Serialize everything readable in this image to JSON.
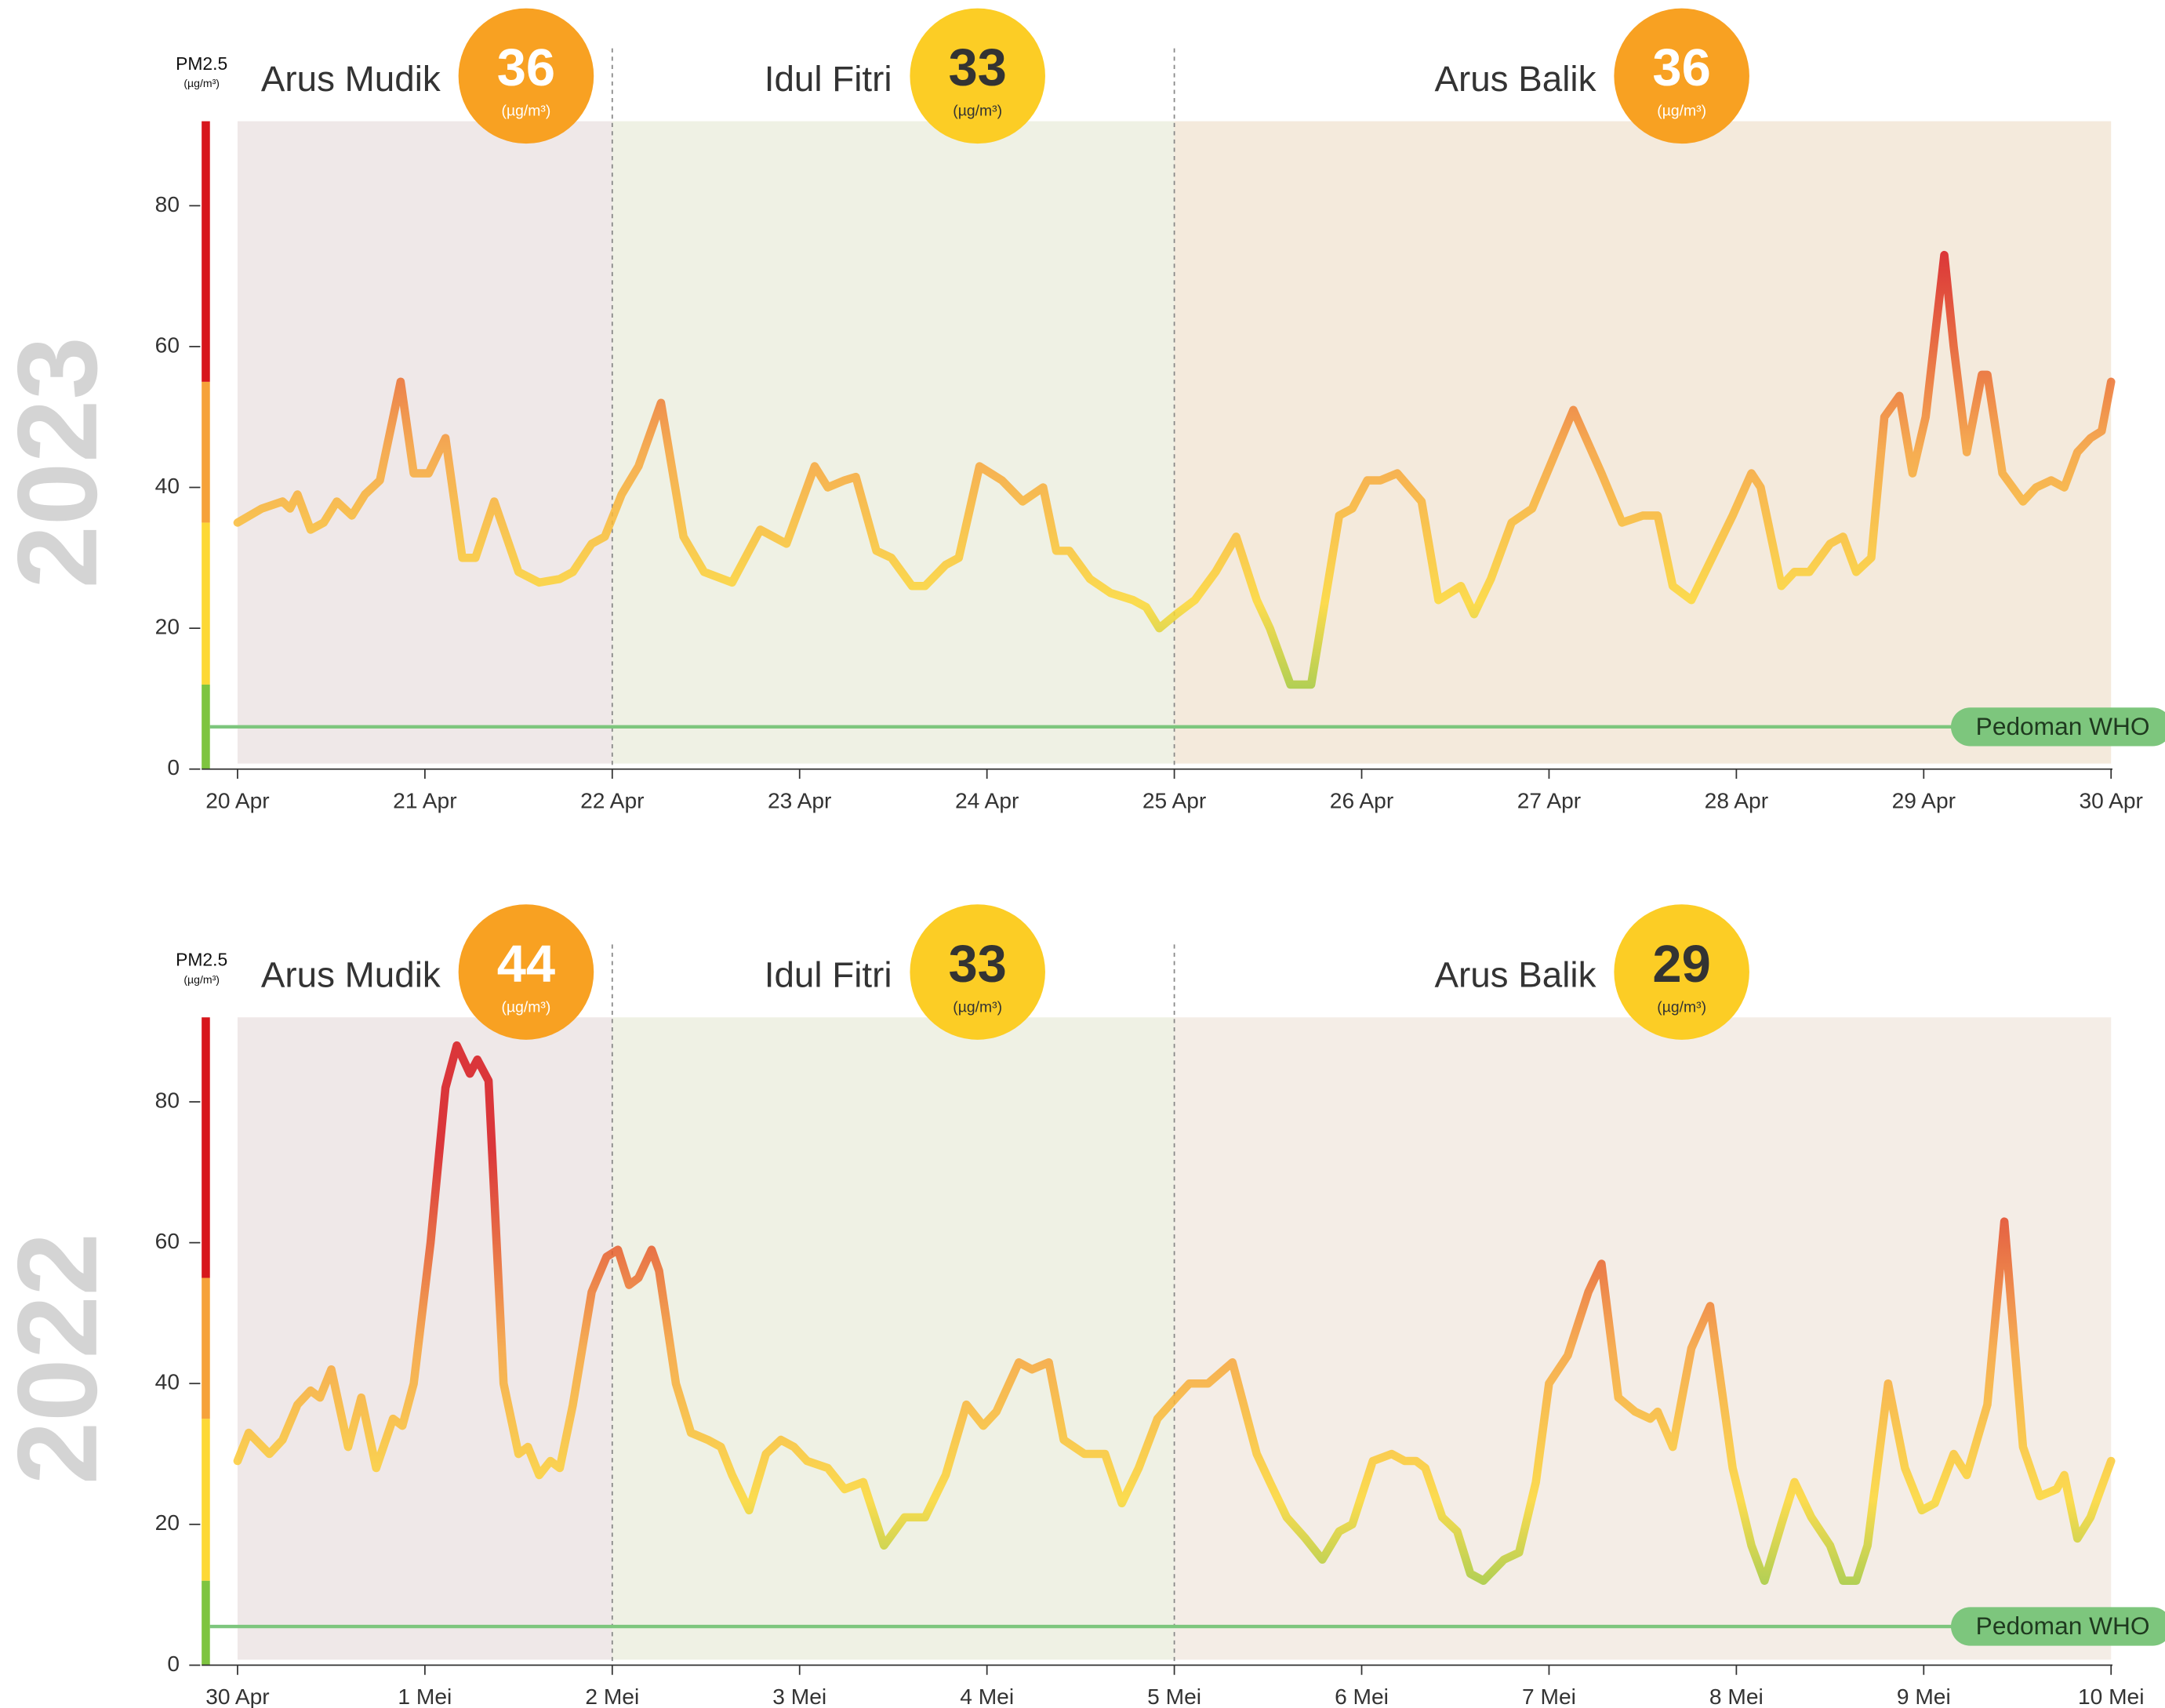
{
  "chart_data": [
    {
      "type": "line",
      "year": "2023",
      "y_axis_label": "PM2.5",
      "unit": "(µg/m³)",
      "x": [
        0,
        0.13,
        0.24,
        0.28,
        0.32,
        0.39,
        0.46,
        0.53,
        0.61,
        0.68,
        0.76,
        0.87,
        0.94,
        1.02,
        1.11,
        1.2,
        1.27,
        1.37,
        1.5,
        1.61,
        1.72,
        1.79,
        1.89,
        1.96,
        2.05,
        2.14,
        2.26,
        2.38,
        2.49,
        2.64,
        2.79,
        2.93,
        3.08,
        3.15,
        3.24,
        3.3,
        3.41,
        3.49,
        3.6,
        3.67,
        3.78,
        3.85,
        3.96,
        4.08,
        4.19,
        4.3,
        4.37,
        4.44,
        4.55,
        4.66,
        4.78,
        4.85,
        4.92,
        5.01,
        5.11,
        5.22,
        5.33,
        5.44,
        5.51,
        5.62,
        5.73,
        5.88,
        5.95,
        6.03,
        6.1,
        6.19,
        6.32,
        6.41,
        6.53,
        6.6,
        6.69,
        6.8,
        6.91,
        7.02,
        7.13,
        7.28,
        7.39,
        7.5,
        7.58,
        7.66,
        7.76,
        7.87,
        7.98,
        8.08,
        8.13,
        8.24,
        8.31,
        8.39,
        8.5,
        8.57,
        8.64,
        8.72,
        8.79,
        8.87,
        8.94,
        9.01,
        9.11,
        9.16,
        9.23,
        9.31,
        9.34,
        9.42,
        9.53,
        9.6,
        9.68,
        9.75,
        9.82,
        9.89,
        9.95,
        10
      ],
      "values": [
        35,
        37,
        38,
        37,
        39,
        34,
        35,
        38,
        36,
        39,
        41,
        55,
        42,
        42,
        47,
        30,
        30,
        38,
        28,
        26.5,
        27,
        28,
        32,
        33,
        39,
        43,
        52,
        33,
        28,
        26.5,
        34,
        32,
        43,
        40,
        41,
        41.5,
        31,
        30,
        26,
        26,
        29,
        30,
        43,
        41,
        38,
        40,
        31,
        31,
        27,
        25,
        24,
        23,
        20,
        22,
        24,
        28,
        33,
        24,
        20,
        12,
        12,
        36,
        37,
        41,
        41,
        42,
        38,
        24,
        26,
        22,
        27,
        35,
        37,
        44,
        51,
        42,
        35,
        36,
        36,
        26,
        24,
        30,
        36,
        42,
        40,
        26,
        28,
        28,
        32,
        33,
        28,
        30,
        50,
        53,
        42,
        50,
        73,
        60,
        45,
        56,
        56,
        42,
        38,
        40,
        41,
        40,
        45,
        47,
        48,
        55
      ],
      "xlim": [
        0,
        10
      ],
      "xticks": [
        {
          "value": 0,
          "label": "20 Apr"
        },
        {
          "value": 1,
          "label": "21 Apr"
        },
        {
          "value": 2,
          "label": "22 Apr"
        },
        {
          "value": 3,
          "label": "23 Apr"
        },
        {
          "value": 4,
          "label": "24 Apr"
        },
        {
          "value": 5,
          "label": "25 Apr"
        },
        {
          "value": 6,
          "label": "26 Apr"
        },
        {
          "value": 7,
          "label": "27 Apr"
        },
        {
          "value": 8,
          "label": "28 Apr"
        },
        {
          "value": 9,
          "label": "29 Apr"
        },
        {
          "value": 10,
          "label": "30 Apr"
        }
      ],
      "ylim": [
        0,
        92
      ],
      "yticks": [
        0,
        20,
        40,
        60,
        80
      ],
      "bands": [
        {
          "from": 0,
          "to": 12,
          "color": "#7ec43f"
        },
        {
          "from": 12,
          "to": 35,
          "color": "#fdd835"
        },
        {
          "from": 35,
          "to": 55,
          "color": "#f6a23a"
        },
        {
          "from": 55,
          "to": 92,
          "color": "#d7161b"
        }
      ],
      "periods": [
        {
          "name": "Arus Mudik",
          "start": 0,
          "end": 2,
          "value": 36,
          "shade": "#efe8e8",
          "badge_color": "#f8a122",
          "badge_text_color": "#ffffff"
        },
        {
          "name": "Idul Fitri",
          "start": 2,
          "end": 5,
          "value": 33,
          "shade": "#eff1e4",
          "badge_color": "#fccd25",
          "badge_text_color": "#333333"
        },
        {
          "name": "Arus Balik",
          "start": 5,
          "end": 10,
          "value": 36,
          "shade": "#f4eadc",
          "badge_color": "#f8a122",
          "badge_text_color": "#ffffff"
        }
      ],
      "reference": {
        "label": "Pedoman WHO",
        "value": 6,
        "color": "#7dc67d"
      }
    },
    {
      "type": "line",
      "year": "2022",
      "y_axis_label": "PM2.5",
      "unit": "(µg/m³)",
      "x": [
        0,
        0.06,
        0.17,
        0.24,
        0.32,
        0.39,
        0.44,
        0.5,
        0.59,
        0.66,
        0.74,
        0.83,
        0.88,
        0.94,
        1.03,
        1.11,
        1.17,
        1.24,
        1.28,
        1.34,
        1.42,
        1.5,
        1.55,
        1.61,
        1.67,
        1.72,
        1.79,
        1.89,
        1.97,
        2.03,
        2.09,
        2.14,
        2.21,
        2.25,
        2.34,
        2.42,
        2.51,
        2.58,
        2.64,
        2.73,
        2.82,
        2.9,
        2.97,
        3.04,
        3.15,
        3.24,
        3.34,
        3.45,
        3.56,
        3.67,
        3.78,
        3.89,
        3.98,
        4.05,
        4.17,
        4.24,
        4.33,
        4.41,
        4.52,
        4.63,
        4.72,
        4.81,
        4.91,
        5.01,
        5.08,
        5.18,
        5.31,
        5.44,
        5.51,
        5.6,
        5.7,
        5.79,
        5.88,
        5.95,
        6.06,
        6.16,
        6.23,
        6.29,
        6.34,
        6.43,
        6.51,
        6.58,
        6.65,
        6.76,
        6.84,
        6.93,
        7,
        7.1,
        7.21,
        7.28,
        7.37,
        7.46,
        7.54,
        7.58,
        7.66,
        7.76,
        7.86,
        7.98,
        8.08,
        8.15,
        8.24,
        8.31,
        8.4,
        8.5,
        8.57,
        8.64,
        8.7,
        8.81,
        8.9,
        8.99,
        9.06,
        9.16,
        9.23,
        9.34,
        9.43,
        9.53,
        9.62,
        9.71,
        9.75,
        9.82,
        9.89,
        10
      ],
      "values": [
        29,
        33,
        30,
        32,
        37,
        39,
        38,
        42,
        31,
        38,
        28,
        35,
        34,
        40,
        60,
        82,
        88,
        84,
        86,
        83,
        40,
        30,
        31,
        27,
        29,
        28,
        37,
        53,
        58,
        59,
        54,
        55,
        59,
        56,
        40,
        33,
        32,
        31,
        27,
        22,
        30,
        32,
        31,
        29,
        28,
        25,
        26,
        17,
        21,
        21,
        27,
        37,
        34,
        36,
        43,
        42,
        43,
        32,
        30,
        30,
        23,
        28,
        35,
        38,
        40,
        40,
        43,
        30,
        26,
        21,
        18,
        15,
        19,
        20,
        29,
        30,
        29,
        29,
        28,
        21,
        19,
        13,
        12,
        15,
        16,
        26,
        40,
        44,
        53,
        57,
        38,
        36,
        35,
        36,
        31,
        45,
        51,
        28,
        17,
        12,
        20,
        26,
        21,
        17,
        12,
        12,
        17,
        40,
        28,
        22,
        23,
        30,
        27,
        37,
        63,
        31,
        24,
        25,
        27,
        18,
        21,
        29
      ],
      "xlim": [
        0,
        10
      ],
      "xticks": [
        {
          "value": 0,
          "label": "30 Apr"
        },
        {
          "value": 1,
          "label": "1 Mei"
        },
        {
          "value": 2,
          "label": "2 Mei"
        },
        {
          "value": 3,
          "label": "3 Mei"
        },
        {
          "value": 4,
          "label": "4 Mei"
        },
        {
          "value": 5,
          "label": "5 Mei"
        },
        {
          "value": 6,
          "label": "6 Mei"
        },
        {
          "value": 7,
          "label": "7 Mei"
        },
        {
          "value": 8,
          "label": "8 Mei"
        },
        {
          "value": 9,
          "label": "9 Mei"
        },
        {
          "value": 10,
          "label": "10 Mei"
        }
      ],
      "ylim": [
        0,
        92
      ],
      "yticks": [
        0,
        20,
        40,
        60,
        80
      ],
      "bands": [
        {
          "from": 0,
          "to": 12,
          "color": "#7ec43f"
        },
        {
          "from": 12,
          "to": 35,
          "color": "#fdd835"
        },
        {
          "from": 35,
          "to": 55,
          "color": "#f6a23a"
        },
        {
          "from": 55,
          "to": 92,
          "color": "#d7161b"
        }
      ],
      "periods": [
        {
          "name": "Arus Mudik",
          "start": 0,
          "end": 2,
          "value": 44,
          "shade": "#efe8e8",
          "badge_color": "#f8a122",
          "badge_text_color": "#ffffff"
        },
        {
          "name": "Idul Fitri",
          "start": 2,
          "end": 5,
          "value": 33,
          "shade": "#eff1e4",
          "badge_color": "#fccd25",
          "badge_text_color": "#333333"
        },
        {
          "name": "Arus Balik",
          "start": 5,
          "end": 10,
          "value": 29,
          "shade": "#f4ede6",
          "badge_color": "#fccd25",
          "badge_text_color": "#333333"
        }
      ],
      "reference": {
        "label": "Pedoman WHO",
        "value": 5.5,
        "color": "#7dc67d"
      }
    }
  ]
}
